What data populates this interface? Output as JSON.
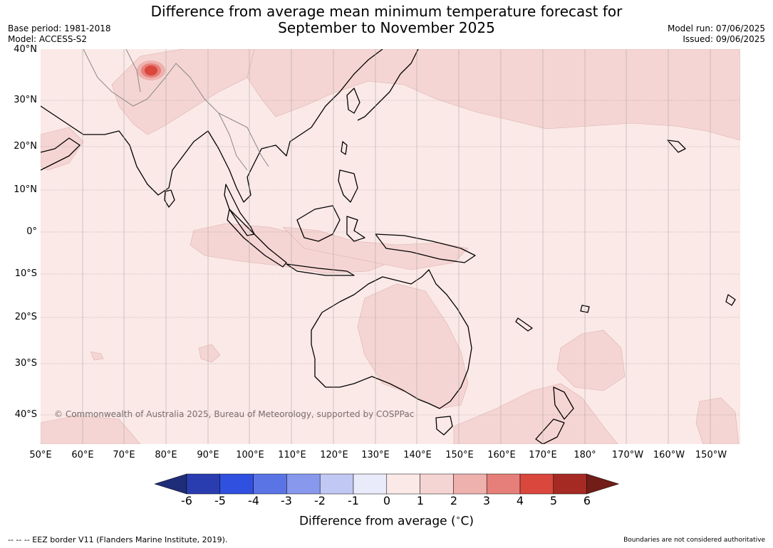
{
  "header": {
    "title_line1": "Difference from average mean minimum temperature forecast for",
    "title_line2": "September to November 2025",
    "base_period": "Base period: 1981-2018",
    "model": "Model: ACCESS-S2",
    "model_run": "Model run: 07/06/2025",
    "issued": "Issued: 09/06/2025"
  },
  "map": {
    "latitude_labels": [
      "40°N",
      "30°N",
      "20°N",
      "10°N",
      "0°",
      "10°S",
      "20°S",
      "30°S",
      "40°S"
    ],
    "longitude_labels": [
      "50°E",
      "60°E",
      "70°E",
      "80°E",
      "90°E",
      "100°E",
      "110°E",
      "120°E",
      "130°E",
      "140°E",
      "150°E",
      "160°E",
      "170°E",
      "180°",
      "170°W",
      "160°W",
      "150°W"
    ],
    "copyright": "© Commonwealth of Australia 2025, Bureau of Meteorology, supported by COSPPac",
    "colors": {
      "ocean_base": "#fbe9e7",
      "anomaly_1_2": "#f5d5d3",
      "anomaly_hot": "#d9473d"
    }
  },
  "colorbar": {
    "tick_labels": [
      "-6",
      "-5",
      "-4",
      "-3",
      "-2",
      "-1",
      "0",
      "1",
      "2",
      "3",
      "4",
      "5",
      "6"
    ],
    "colors": [
      "#1f2d78",
      "#2a3db0",
      "#3050e0",
      "#5a74e6",
      "#8898ec",
      "#c2c8f4",
      "#e9ebfa",
      "#fbe9e7",
      "#f5d5d3",
      "#efb1ad",
      "#e67f79",
      "#d9473d",
      "#a62a24",
      "#721d18"
    ],
    "label": "Difference from average (",
    "label_unit": "C)",
    "degree_symbol": "∘"
  },
  "footer": {
    "eez_note": "--  --  -- EEZ border V11 (Flanders Marine Institute, 2019).",
    "disclaimer": "Boundaries are not considered authoritative"
  }
}
